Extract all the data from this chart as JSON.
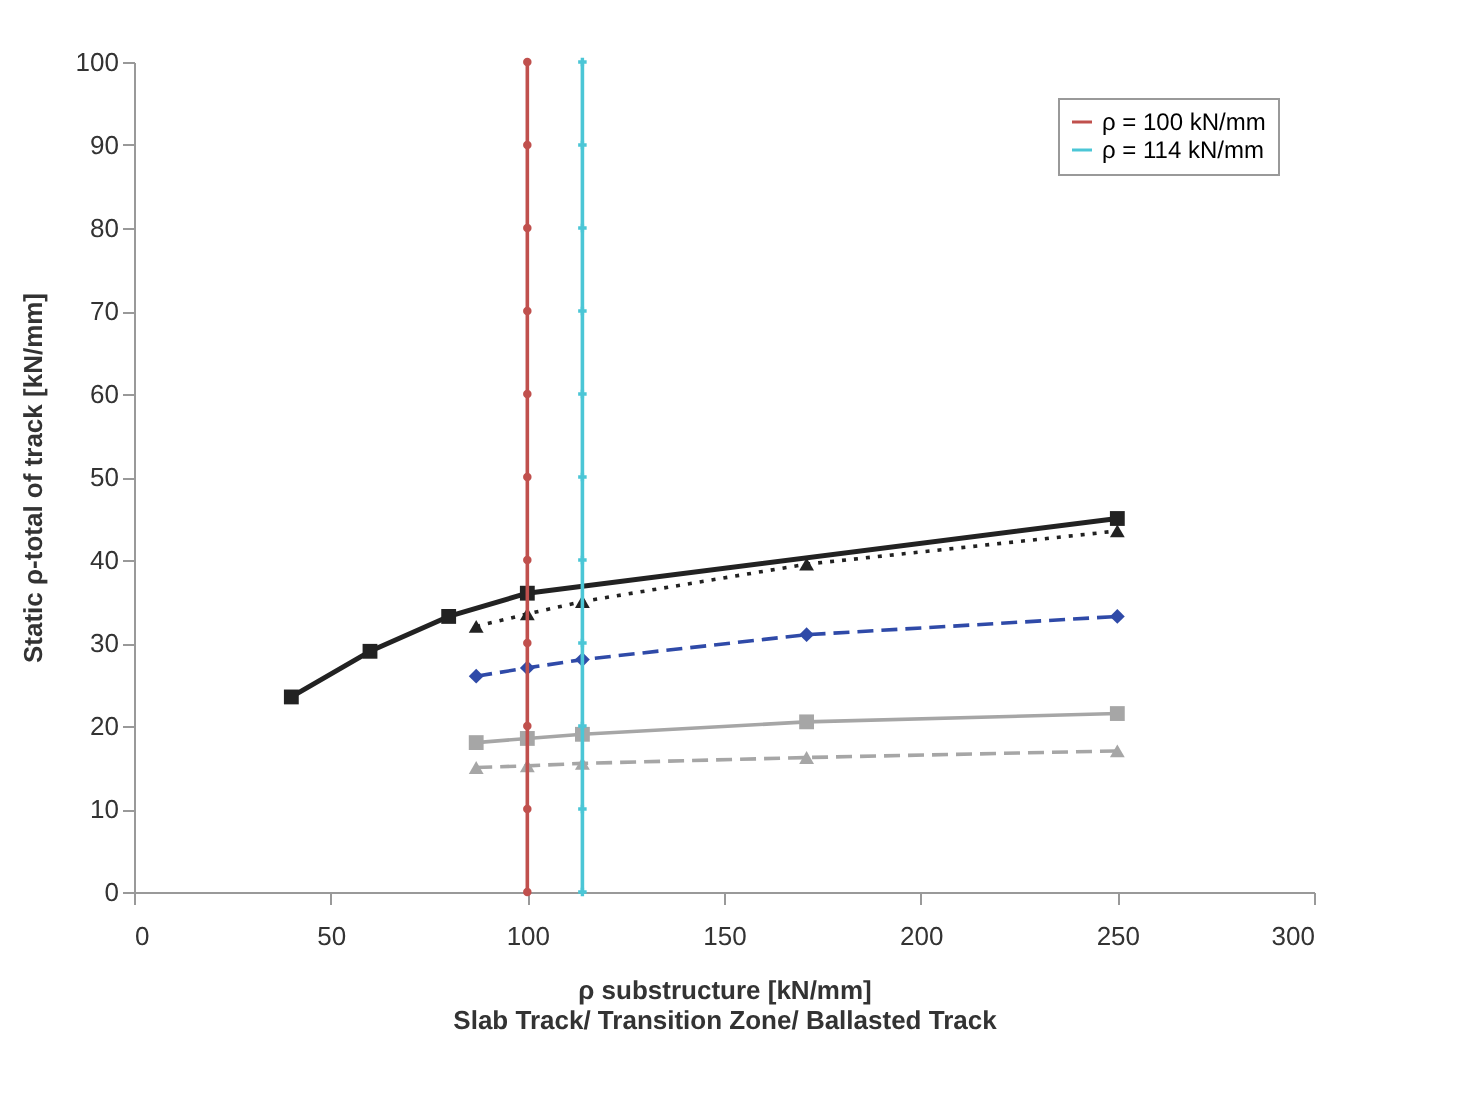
{
  "chart_data": {
    "type": "line",
    "xlabel": "ρ substructure [kN/mm]",
    "ylabel": "Static ρ-total of track  [kN/mm]",
    "annotations": [
      "Slab Track/ Transition Zone/ Ballasted Track"
    ],
    "xlim": [
      0,
      300
    ],
    "xticks": [
      0,
      50,
      100,
      150,
      200,
      250,
      300
    ],
    "ylim": [
      0,
      100
    ],
    "yticks": [
      0,
      10,
      20,
      30,
      40,
      50,
      60,
      70,
      80,
      90,
      100
    ],
    "grid": false,
    "legend": "top right",
    "series": [
      {
        "color": "#a6a6a6",
        "marker": "square",
        "line_style": "solid",
        "x": [
          87,
          100,
          114,
          171,
          250
        ],
        "values": [
          18,
          18.5,
          19,
          20.5,
          21.5
        ]
      },
      {
        "color": "#a6a6a6",
        "marker": "triangle",
        "line_style": "dashed",
        "x": [
          87,
          100,
          114,
          171,
          250
        ],
        "values": [
          15,
          15.2,
          15.5,
          16.2,
          17
        ]
      },
      {
        "color": "#2f4aa8",
        "marker": "diamond",
        "line_style": "dashed",
        "x": [
          87,
          100,
          114,
          171,
          250
        ],
        "values": [
          26,
          27,
          28,
          31,
          33.2
        ]
      },
      {
        "color": "#222222",
        "marker": "triangle",
        "line_style": "dotted",
        "x": [
          87,
          100,
          114,
          171,
          250
        ],
        "values": [
          32,
          33.5,
          35,
          39.5,
          43.5
        ]
      },
      {
        "color": "#222222",
        "marker": "square",
        "line_style": "solid",
        "x": [
          40,
          60,
          80,
          100,
          250
        ],
        "values": [
          23.5,
          29,
          33.2,
          36,
          45
        ]
      },
      {
        "name": "ρ = 100 kN/mm",
        "color": "#c0504d",
        "marker": "circle",
        "line_style": "solid",
        "x": [
          100,
          100,
          100,
          100,
          100,
          100,
          100,
          100,
          100,
          100,
          100
        ],
        "values": [
          0,
          10,
          20,
          30,
          40,
          50,
          60,
          70,
          80,
          90,
          100
        ]
      },
      {
        "name": "ρ = 114 kN/mm",
        "color": "#4bc6d6",
        "marker": "cross",
        "line_style": "solid",
        "x": [
          114,
          114,
          114,
          114,
          114,
          114,
          114,
          114,
          114,
          114,
          114
        ],
        "values": [
          0,
          10,
          20,
          30,
          40,
          50,
          60,
          70,
          80,
          90,
          100
        ]
      }
    ]
  }
}
